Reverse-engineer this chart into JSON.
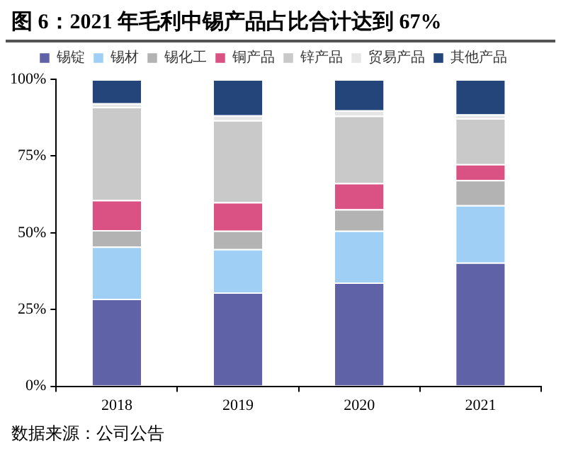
{
  "chart_data": {
    "type": "bar",
    "title": "图 6：2021 年毛利中锡产品占比合计达到 67%",
    "stacked": true,
    "legend": "top",
    "grid": false,
    "categories": [
      "2018",
      "2019",
      "2020",
      "2021"
    ],
    "ylim": [
      0,
      100
    ],
    "yticks": [
      {
        "value": 0,
        "label": "0%"
      },
      {
        "value": 25,
        "label": "25%"
      },
      {
        "value": 50,
        "label": "50%"
      },
      {
        "value": 75,
        "label": "75%"
      },
      {
        "value": 100,
        "label": "100%"
      }
    ],
    "series": [
      {
        "name": "锡锭",
        "color": "#6062a8",
        "values": [
          28.5,
          30.6,
          33.8,
          40.3
        ]
      },
      {
        "name": "锡材",
        "color": "#a0cff5",
        "values": [
          17,
          14.1,
          16.9,
          18.7
        ]
      },
      {
        "name": "锡化工",
        "color": "#b3b3b3",
        "values": [
          5.4,
          6,
          7,
          8.2
        ]
      },
      {
        "name": "铜产品",
        "color": "#da5283",
        "values": [
          9.8,
          9.3,
          8.5,
          5.2
        ]
      },
      {
        "name": "锌产品",
        "color": "#c9c9c9",
        "values": [
          30.3,
          26.7,
          21.9,
          14.9
        ]
      },
      {
        "name": "贸易产品",
        "color": "#e6e6e6",
        "values": [
          1.2,
          1.6,
          1.8,
          1.3
        ]
      },
      {
        "name": "其他产品",
        "color": "#23457a",
        "values": [
          7.8,
          11.7,
          10.1,
          11.4
        ]
      }
    ],
    "annotations": [
      "数据来源：公司公告"
    ]
  }
}
